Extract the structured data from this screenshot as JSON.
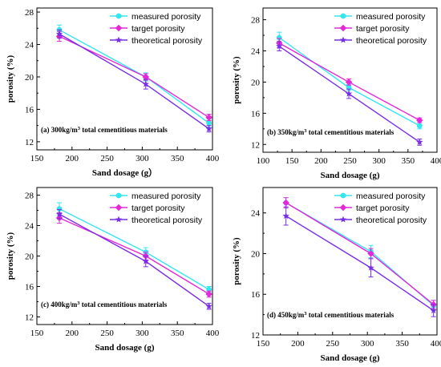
{
  "colors": {
    "measured": "#33e6f0",
    "target": "#e526d9",
    "theoretical": "#7a2ee6"
  },
  "chart_data": [
    {
      "type": "line",
      "annotation": "(a) 300kg/m³ total cementitious materials",
      "xlabel": "Sand dosage (g）",
      "ylabel": "porosity (%)",
      "xlim": [
        150,
        400
      ],
      "ylim": [
        11,
        28.5
      ],
      "xticks": [
        150,
        200,
        250,
        300,
        350,
        400
      ],
      "yticks": [
        12,
        16,
        20,
        24,
        28
      ],
      "legend_position": "top-right",
      "x": [
        182,
        305,
        395
      ],
      "series": [
        {
          "name": "measured porosity",
          "key": "measured",
          "marker": "circle",
          "values": [
            25.8,
            20.0,
            14.3
          ],
          "errors": [
            0.6,
            0.5,
            0.5
          ]
        },
        {
          "name": "target porosity",
          "key": "target",
          "marker": "diamond",
          "values": [
            25.0,
            20.0,
            15.0
          ],
          "errors": [
            0.6,
            0.4,
            0.4
          ]
        },
        {
          "name": "theoretical porosity",
          "key": "theoretical",
          "marker": "star",
          "values": [
            25.3,
            19.1,
            13.6
          ],
          "errors": [
            0.5,
            0.6,
            0.4
          ]
        }
      ]
    },
    {
      "type": "line",
      "annotation": "(b) 350kg/m³ total cementitious materials",
      "xlabel": "Sand dosage (g)",
      "ylabel": "porosity (%)",
      "xlim": [
        100,
        400
      ],
      "ylim": [
        11,
        29.5
      ],
      "xticks": [
        100,
        150,
        200,
        250,
        300,
        350,
        400
      ],
      "yticks": [
        12,
        16,
        20,
        24,
        28
      ],
      "legend_position": "top-right",
      "x": [
        128,
        248,
        370
      ],
      "series": [
        {
          "name": "measured porosity",
          "key": "measured",
          "marker": "circle",
          "values": [
            25.7,
            19.3,
            14.4
          ],
          "errors": [
            0.7,
            0.4,
            0.4
          ]
        },
        {
          "name": "target porosity",
          "key": "target",
          "marker": "diamond",
          "values": [
            25.0,
            20.0,
            15.1
          ],
          "errors": [
            0.6,
            0.4,
            0.3
          ]
        },
        {
          "name": "theoretical porosity",
          "key": "theoretical",
          "marker": "star",
          "values": [
            24.6,
            18.5,
            12.3
          ],
          "errors": [
            0.6,
            0.6,
            0.4
          ]
        }
      ]
    },
    {
      "type": "line",
      "annotation": "(c) 400kg/m³ total cementitious materials",
      "xlabel": "Sand dosage (g)",
      "ylabel": "porosity (%)",
      "xlim": [
        150,
        400
      ],
      "ylim": [
        11,
        29
      ],
      "xticks": [
        150,
        200,
        250,
        300,
        350,
        400
      ],
      "yticks": [
        12,
        16,
        20,
        24,
        28
      ],
      "legend_position": "top-right",
      "x": [
        182,
        305,
        395
      ],
      "series": [
        {
          "name": "measured porosity",
          "key": "measured",
          "marker": "circle",
          "values": [
            26.2,
            20.5,
            15.6
          ],
          "errors": [
            0.8,
            0.6,
            0.4
          ]
        },
        {
          "name": "target porosity",
          "key": "target",
          "marker": "diamond",
          "values": [
            25.0,
            20.0,
            15.0
          ],
          "errors": [
            0.7,
            0.5,
            0.4
          ]
        },
        {
          "name": "theoretical porosity",
          "key": "theoretical",
          "marker": "star",
          "values": [
            25.5,
            19.3,
            13.4
          ],
          "errors": [
            0.6,
            0.7,
            0.4
          ]
        }
      ]
    },
    {
      "type": "line",
      "annotation": "(d) 450kg/m³ total cementitious materials",
      "xlabel": "Sand dosage (g)",
      "ylabel": "porosity (%)",
      "xlim": [
        150,
        400
      ],
      "ylim": [
        12,
        26.5
      ],
      "xticks": [
        150,
        200,
        250,
        300,
        350,
        400
      ],
      "yticks": [
        12,
        16,
        20,
        24
      ],
      "legend_position": "top-right",
      "x": [
        183,
        305,
        395
      ],
      "series": [
        {
          "name": "measured porosity",
          "key": "measured",
          "marker": "circle",
          "values": [
            25.0,
            20.2,
            14.9
          ],
          "errors": [
            0.5,
            0.6,
            0.5
          ]
        },
        {
          "name": "target porosity",
          "key": "target",
          "marker": "diamond",
          "values": [
            25.0,
            20.0,
            15.0
          ],
          "errors": [
            0.5,
            0.5,
            0.4
          ]
        },
        {
          "name": "theoretical porosity",
          "key": "theoretical",
          "marker": "star",
          "values": [
            23.7,
            18.6,
            14.4
          ],
          "errors": [
            0.9,
            0.9,
            0.6
          ]
        }
      ]
    }
  ]
}
